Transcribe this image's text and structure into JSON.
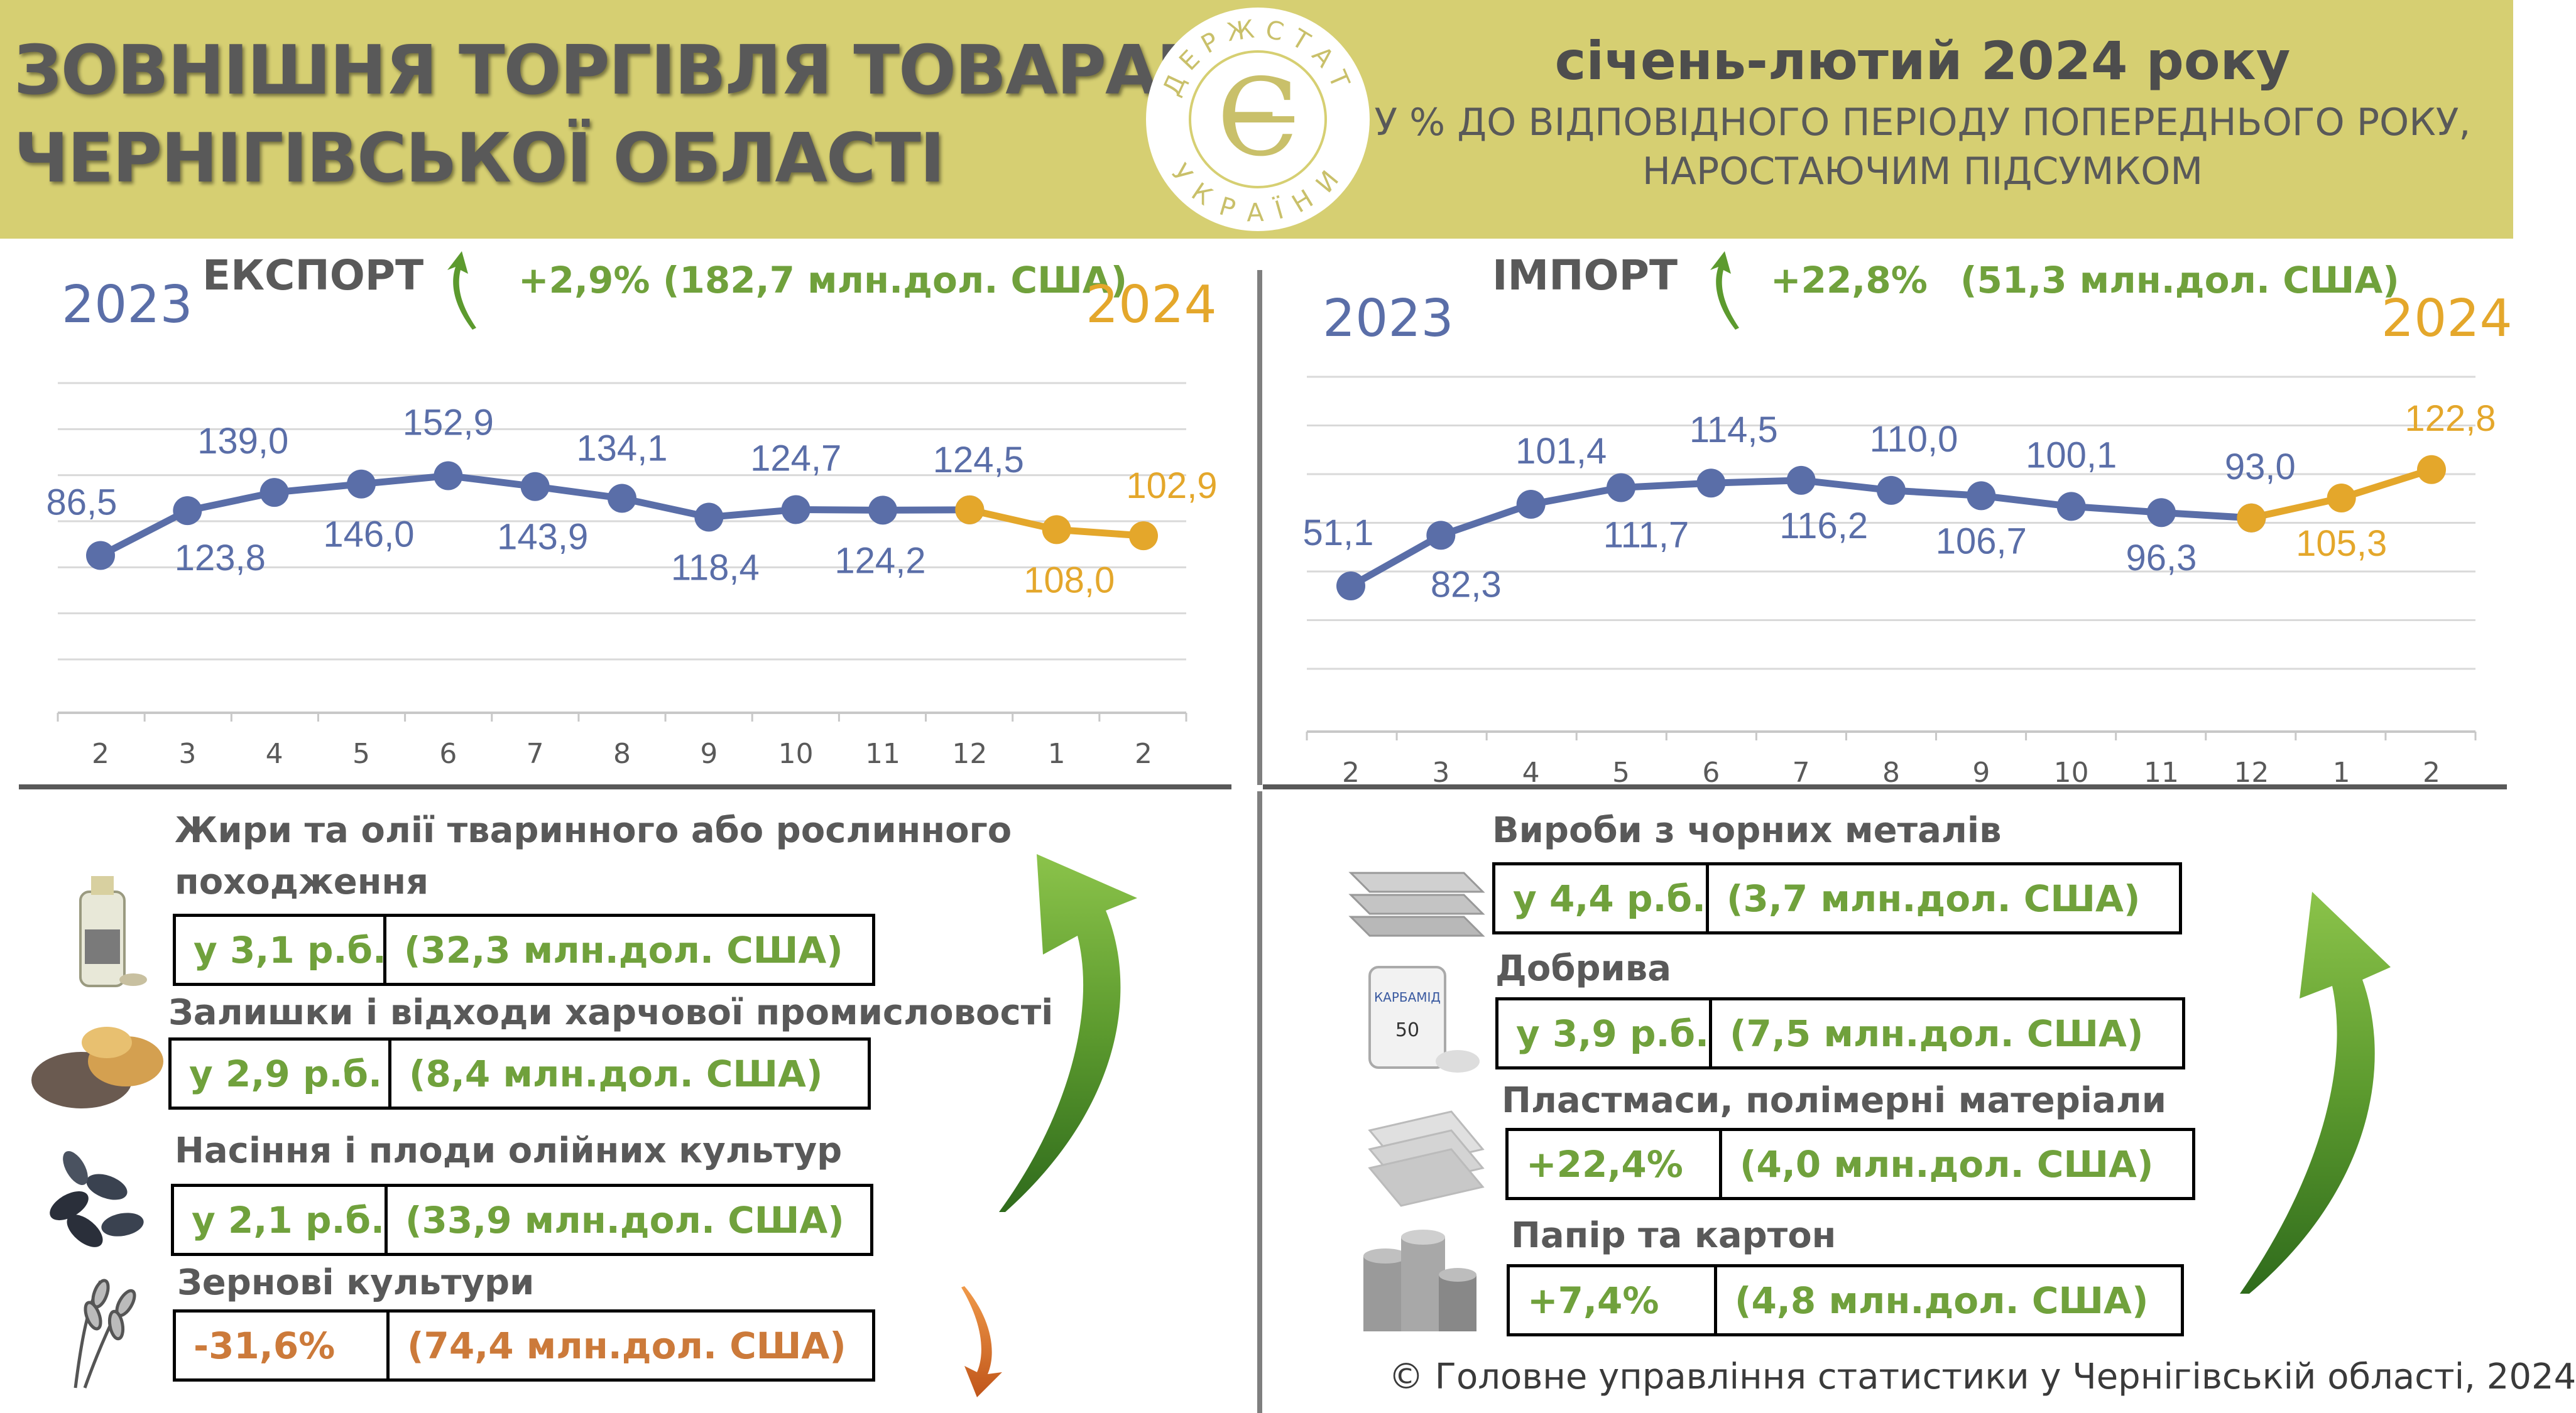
{
  "header": {
    "title_line1": "ЗОВНІШНЯ ТОРГІВЛЯ ТОВАРАМИ",
    "title_line2": "ЧЕРНІГІВСЬКОЇ ОБЛАСТІ",
    "logo_top_text": "ДЕРЖСТАТ",
    "logo_bottom_text": "УКРАЇНИ",
    "logo_symbol": "Є",
    "period": "січень-лютий 2024 року",
    "subtitle_line1": "У % ДО ВІДПОВІДНОГО ПЕРІОДУ ПОПЕРЕДНЬОГО РОКУ,",
    "subtitle_line2": "НАРОСТАЮЧИМ ПІДСУМКОМ"
  },
  "export_section": {
    "title": "ЕКСПОРТ",
    "change": "+2,9%",
    "amount": "(182,7 млн.дол. США)",
    "year_left": "2023",
    "year_right": "2024"
  },
  "import_section": {
    "title": "ІМПОРТ",
    "change": "+22,8%",
    "amount": "(51,3 млн.дол. США)",
    "year_left": "2023",
    "year_right": "2024"
  },
  "chart_data": [
    {
      "type": "line",
      "title": "ЕКСПОРТ",
      "categories": [
        "2",
        "3",
        "4",
        "5",
        "6",
        "7",
        "8",
        "9",
        "10",
        "11",
        "12",
        "1",
        "2"
      ],
      "series": [
        {
          "name": "2023",
          "values": [
            86.5,
            123.8,
            139.0,
            146.0,
            152.9,
            143.9,
            134.1,
            118.4,
            124.7,
            124.2,
            124.5,
            null,
            null
          ],
          "labels": [
            "86,5",
            "123,8",
            "139,0",
            "146,0",
            "152,9",
            "143,9",
            "134,1",
            "118,4",
            "124,7",
            "124,2",
            "124,5",
            "",
            ""
          ]
        },
        {
          "name": "2024",
          "values": [
            null,
            null,
            null,
            null,
            null,
            null,
            null,
            null,
            null,
            null,
            124.5,
            108.0,
            102.9
          ],
          "labels": [
            "",
            "",
            "",
            "",
            "",
            "",
            "",
            "",
            "",
            "",
            "",
            "108,0",
            "102,9"
          ]
        }
      ],
      "colors": {
        "2023": "#5a6ea8",
        "2024": "#e4a72b"
      },
      "ylim": [
        0,
        230
      ],
      "grid": true
    },
    {
      "type": "line",
      "title": "ІМПОРТ",
      "categories": [
        "2",
        "3",
        "4",
        "5",
        "6",
        "7",
        "8",
        "9",
        "10",
        "11",
        "12",
        "1",
        "2"
      ],
      "series": [
        {
          "name": "2023",
          "values": [
            51.1,
            82.3,
            101.4,
            111.7,
            114.5,
            116.2,
            110.0,
            106.7,
            100.1,
            96.3,
            93.0,
            null,
            null
          ],
          "labels": [
            "51,1",
            "82,3",
            "101,4",
            "111,7",
            "114,5",
            "116,2",
            "110,0",
            "106,7",
            "100,1",
            "96,3",
            "93,0",
            "",
            ""
          ]
        },
        {
          "name": "2024",
          "values": [
            null,
            null,
            null,
            null,
            null,
            null,
            null,
            null,
            null,
            null,
            93.0,
            105.3,
            122.8
          ],
          "labels": [
            "",
            "",
            "",
            "",
            "",
            "",
            "",
            "",
            "",
            "",
            "",
            "105,3",
            "122,8"
          ]
        }
      ],
      "colors": {
        "2023": "#5a6ea8",
        "2024": "#e4a72b"
      },
      "ylim": [
        0,
        180
      ],
      "grid": true
    }
  ],
  "export_products": [
    {
      "name_line1": "Жири та олії тваринного або рослинного",
      "name_line2": "походження",
      "change": "у 3,1 р.б.",
      "amount": "(32,3 млн.дол. США)",
      "icon": "oil-bottle-icon",
      "negative": false
    },
    {
      "name_line1": "Залишки і відходи харчової промисловості",
      "name_line2": "",
      "change": "у 2,9 р.б.",
      "amount": "(8,4 млн.дол. США)",
      "icon": "food-waste-icon",
      "negative": false
    },
    {
      "name_line1": "Насіння і плоди олійних культур",
      "name_line2": "",
      "change": "у 2,1 р.б.",
      "amount": "(33,9 млн.дол. США)",
      "icon": "sunflower-seeds-icon",
      "negative": false
    },
    {
      "name_line1": "Зернові культури",
      "name_line2": "",
      "change": "-31,6%",
      "amount": "(74,4 млн.дол. США)",
      "icon": "wheat-icon",
      "negative": true
    }
  ],
  "import_products": [
    {
      "name_line1": "Вироби з чорних металів",
      "change": "у 4,4 р.б.",
      "amount": "(3,7 млн.дол. США)",
      "icon": "metal-pipes-icon"
    },
    {
      "name_line1": "Добрива",
      "change": "у 3,9 р.б.",
      "amount": "(7,5 млн.дол. США)",
      "icon": "fertilizer-bag-icon",
      "bag_label": "КАРБАМІД",
      "bag_number": "50"
    },
    {
      "name_line1": "Пластмаси, полімерні матеріали",
      "change": "+22,4%",
      "amount": "(4,0 млн.дол. США)",
      "icon": "plastic-sheets-icon"
    },
    {
      "name_line1": "Папір та картон",
      "change": "+7,4%",
      "amount": "(4,8 млн.дол. США)",
      "icon": "paper-rolls-icon"
    }
  ],
  "footer": {
    "copyright": "© Головне управління статистики у Чернігівській області, 2024"
  }
}
